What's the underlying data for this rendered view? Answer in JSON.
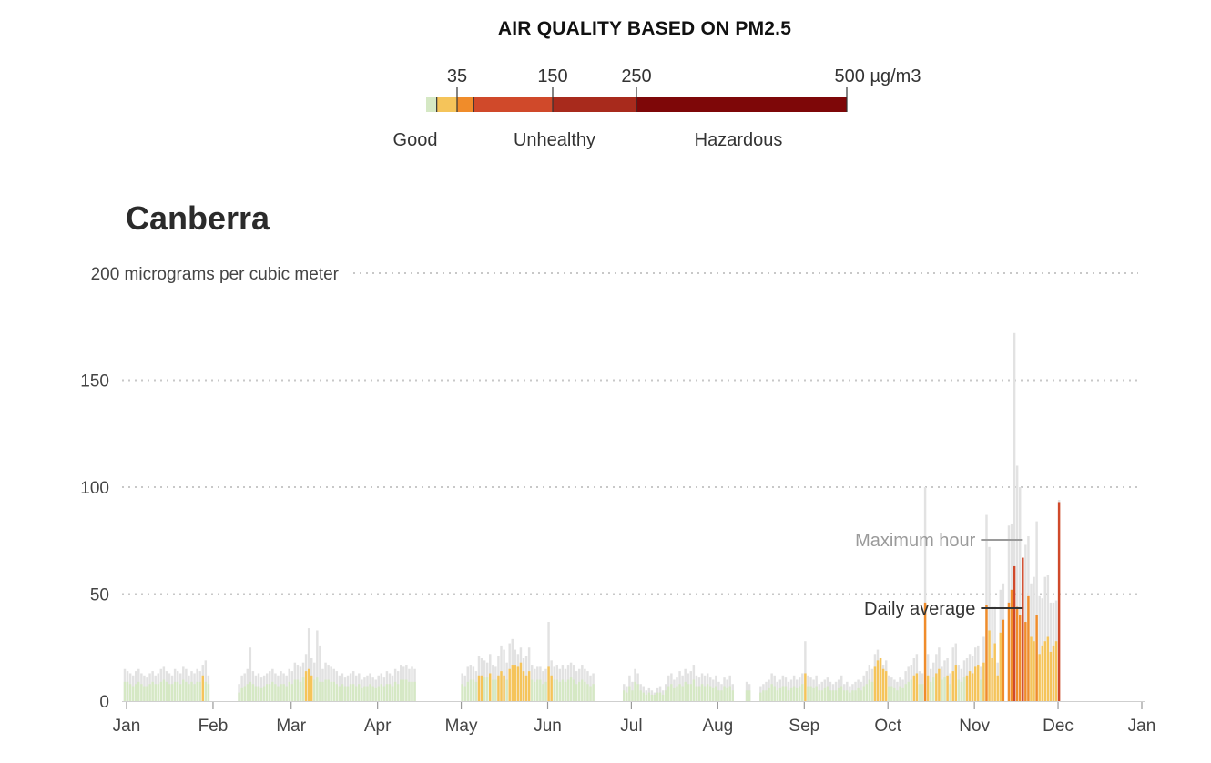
{
  "legend": {
    "title": "AIR QUALITY BASED ON PM2.5",
    "scale_ticks": [
      {
        "value": 12,
        "label": ""
      },
      {
        "value": 35,
        "label": "35"
      },
      {
        "value": 55,
        "label": ""
      },
      {
        "value": 150,
        "label": "150"
      },
      {
        "value": 250,
        "label": "250"
      },
      {
        "value": 500,
        "label": "500 µg/m3"
      }
    ],
    "bands": [
      {
        "from": 0,
        "to": 12,
        "color": "#d5e8c4"
      },
      {
        "from": 12,
        "to": 35,
        "color": "#f5c45a"
      },
      {
        "from": 35,
        "to": 55,
        "color": "#f08c2a"
      },
      {
        "from": 55,
        "to": 150,
        "color": "#d0492a"
      },
      {
        "from": 150,
        "to": 250,
        "color": "#a82a1c"
      },
      {
        "from": 250,
        "to": 500,
        "color": "#7e0708"
      }
    ],
    "categories": [
      {
        "label": "Good",
        "value": 0
      },
      {
        "label": "Unhealthy",
        "value": 150
      },
      {
        "label": "Hazardous",
        "value": 380
      }
    ]
  },
  "colors": {
    "good": "#d5e8c4",
    "moderate": "#f5c45a",
    "sensitive": "#f08c2a",
    "unhealthy": "#d0492a",
    "very_unhealthy": "#a82a1c",
    "hazardous": "#7e0708",
    "max_hour": "#e2e2e2",
    "gridline": "#c8c8c8"
  },
  "chart_data": {
    "type": "bar",
    "title": "Canberra",
    "ylabel": "",
    "ylim": [
      0,
      200
    ],
    "y_ticks": [
      {
        "value": 0,
        "label": "0"
      },
      {
        "value": 50,
        "label": "50"
      },
      {
        "value": 100,
        "label": "100"
      },
      {
        "value": 150,
        "label": "150"
      },
      {
        "value": 200,
        "label": "200 micrograms per cubic meter"
      }
    ],
    "x_ticks": [
      {
        "day": 0,
        "label": "Jan"
      },
      {
        "day": 31,
        "label": "Feb"
      },
      {
        "day": 59,
        "label": "Mar"
      },
      {
        "day": 90,
        "label": "Apr"
      },
      {
        "day": 120,
        "label": "May"
      },
      {
        "day": 151,
        "label": "Jun"
      },
      {
        "day": 181,
        "label": "Jul"
      },
      {
        "day": 212,
        "label": "Aug"
      },
      {
        "day": 243,
        "label": "Sep"
      },
      {
        "day": 273,
        "label": "Oct"
      },
      {
        "day": 304,
        "label": "Nov"
      },
      {
        "day": 334,
        "label": "Dec"
      },
      {
        "day": 365,
        "label": "Jan"
      }
    ],
    "annotations": [
      {
        "text": "Maximum hour",
        "day": 323,
        "value": 75
      },
      {
        "text": "Daily average",
        "day": 323,
        "value": 44
      }
    ],
    "series": [
      {
        "name": "Maximum hour",
        "values": [
          15,
          14,
          13,
          12,
          14,
          15,
          13,
          12,
          11,
          13,
          14,
          12,
          13,
          15,
          16,
          14,
          13,
          12,
          15,
          14,
          13,
          16,
          15,
          12,
          14,
          13,
          15,
          14,
          17,
          19,
          12,
          0,
          0,
          0,
          0,
          0,
          0,
          0,
          0,
          0,
          0,
          8,
          12,
          13,
          15,
          25,
          14,
          12,
          13,
          11,
          12,
          13,
          14,
          15,
          13,
          12,
          14,
          13,
          12,
          15,
          14,
          18,
          17,
          16,
          18,
          22,
          34,
          20,
          18,
          33,
          26,
          15,
          18,
          17,
          16,
          15,
          14,
          12,
          13,
          11,
          12,
          13,
          14,
          12,
          13,
          10,
          11,
          12,
          13,
          11,
          10,
          12,
          13,
          11,
          14,
          13,
          12,
          15,
          14,
          17,
          16,
          17,
          15,
          16,
          15,
          0,
          0,
          0,
          0,
          0,
          0,
          0,
          0,
          0,
          0,
          0,
          0,
          0,
          0,
          0,
          0,
          13,
          12,
          16,
          17,
          16,
          14,
          21,
          20,
          19,
          18,
          22,
          17,
          16,
          21,
          26,
          24,
          18,
          27,
          29,
          24,
          22,
          25,
          20,
          21,
          25,
          17,
          15,
          16,
          16,
          14,
          15,
          37,
          19,
          16,
          17,
          15,
          17,
          15,
          17,
          18,
          17,
          14,
          15,
          17,
          15,
          14,
          12,
          13,
          0,
          0,
          0,
          0,
          0,
          0,
          0,
          0,
          0,
          0,
          8,
          7,
          12,
          9,
          15,
          13,
          8,
          7,
          5,
          6,
          5,
          4,
          6,
          7,
          5,
          8,
          12,
          13,
          10,
          11,
          14,
          12,
          15,
          13,
          14,
          17,
          12,
          11,
          13,
          12,
          13,
          11,
          10,
          12,
          9,
          8,
          11,
          10,
          12,
          8,
          0,
          0,
          0,
          0,
          9,
          8,
          0,
          0,
          0,
          7,
          8,
          9,
          10,
          13,
          12,
          9,
          10,
          12,
          11,
          9,
          10,
          12,
          10,
          11,
          13,
          28,
          12,
          11,
          10,
          12,
          8,
          9,
          10,
          11,
          9,
          8,
          9,
          10,
          12,
          8,
          9,
          7,
          8,
          9,
          10,
          9,
          12,
          14,
          17,
          15,
          22,
          24,
          20,
          17,
          19,
          12,
          11,
          10,
          9,
          11,
          10,
          14,
          16,
          17,
          20,
          22,
          14,
          13,
          100,
          22,
          15,
          18,
          22,
          25,
          16,
          19,
          20,
          13,
          25,
          27,
          17,
          15,
          19,
          20,
          22,
          21,
          25,
          26,
          16,
          30,
          87,
          72,
          44,
          44,
          18,
          52,
          55,
          0,
          82,
          83,
          172,
          110,
          100,
          53,
          73,
          77,
          55,
          58,
          84,
          49,
          48,
          58,
          59,
          46,
          46,
          47,
          94,
          0
        ]
      },
      {
        "name": "Daily average",
        "values": [
          9,
          9,
          8,
          7,
          8,
          9,
          8,
          7,
          7,
          8,
          9,
          8,
          8,
          9,
          10,
          9,
          8,
          8,
          9,
          9,
          8,
          10,
          9,
          8,
          9,
          8,
          9,
          9,
          12,
          9,
          8,
          0,
          0,
          0,
          0,
          0,
          0,
          0,
          0,
          0,
          0,
          4,
          6,
          7,
          8,
          9,
          8,
          7,
          7,
          6,
          7,
          8,
          8,
          9,
          8,
          7,
          8,
          8,
          7,
          9,
          8,
          10,
          10,
          9,
          11,
          14,
          15,
          12,
          10,
          11,
          9,
          9,
          10,
          10,
          9,
          9,
          8,
          7,
          8,
          7,
          7,
          8,
          8,
          7,
          8,
          6,
          7,
          7,
          8,
          7,
          6,
          7,
          8,
          7,
          8,
          8,
          7,
          9,
          8,
          10,
          10,
          10,
          9,
          9,
          9,
          0,
          0,
          0,
          0,
          0,
          0,
          0,
          0,
          0,
          0,
          0,
          0,
          0,
          0,
          0,
          0,
          8,
          7,
          9,
          10,
          10,
          9,
          12,
          12,
          11,
          11,
          13,
          10,
          10,
          12,
          14,
          12,
          10,
          15,
          17,
          17,
          16,
          18,
          14,
          12,
          14,
          10,
          9,
          10,
          10,
          8,
          9,
          16,
          12,
          10,
          10,
          9,
          10,
          9,
          10,
          11,
          10,
          8,
          9,
          10,
          9,
          8,
          7,
          8,
          0,
          0,
          0,
          0,
          0,
          0,
          0,
          0,
          0,
          0,
          5,
          4,
          7,
          5,
          9,
          8,
          5,
          4,
          3,
          4,
          3,
          3,
          4,
          4,
          3,
          5,
          7,
          8,
          6,
          7,
          8,
          7,
          9,
          8,
          8,
          10,
          7,
          7,
          8,
          7,
          8,
          7,
          6,
          7,
          5,
          5,
          7,
          6,
          7,
          5,
          0,
          0,
          0,
          0,
          5,
          5,
          0,
          0,
          0,
          4,
          5,
          5,
          6,
          8,
          7,
          5,
          6,
          7,
          7,
          5,
          6,
          7,
          6,
          7,
          8,
          13,
          7,
          7,
          6,
          7,
          5,
          5,
          6,
          7,
          5,
          5,
          5,
          6,
          7,
          5,
          5,
          4,
          5,
          5,
          6,
          5,
          7,
          8,
          10,
          9,
          16,
          19,
          20,
          15,
          14,
          7,
          7,
          6,
          5,
          7,
          6,
          8,
          9,
          10,
          12,
          13,
          8,
          8,
          46,
          12,
          9,
          11,
          13,
          15,
          10,
          11,
          12,
          8,
          14,
          17,
          10,
          9,
          11,
          12,
          14,
          13,
          16,
          17,
          10,
          18,
          45,
          33,
          20,
          27,
          12,
          32,
          38,
          0,
          46,
          52,
          63,
          44,
          40,
          67,
          37,
          49,
          30,
          28,
          40,
          22,
          26,
          28,
          30,
          23,
          26,
          28,
          93,
          0
        ]
      }
    ]
  }
}
